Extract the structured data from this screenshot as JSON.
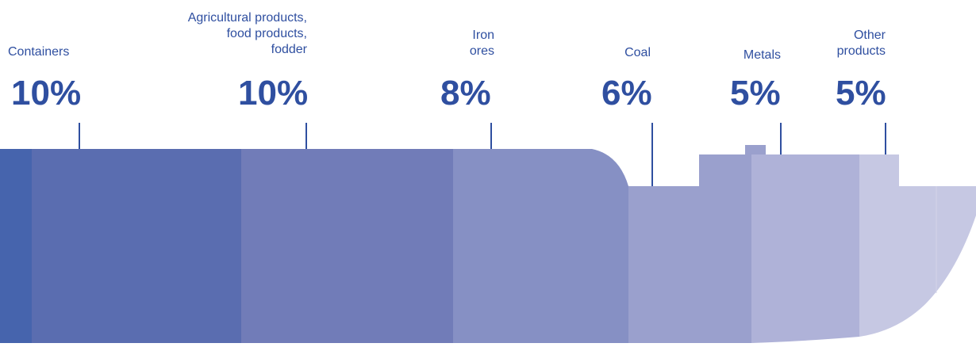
{
  "chart_data": {
    "type": "bar",
    "categories": [
      "Containers",
      "Agricultural products,\nfood products,\nfodder",
      "Iron\nores",
      "Coal",
      "Metals",
      "Other\nproducts"
    ],
    "values": [
      10,
      10,
      8,
      6,
      5,
      5
    ],
    "value_labels": [
      "10%",
      "10%",
      "8%",
      "6%",
      "5%",
      "5%"
    ],
    "unit": "%",
    "colors": [
      "#4664ad",
      "#5a6db0",
      "#717cb8",
      "#8690c4",
      "#9aa0cd",
      "#afb2d8",
      "#c6c8e3"
    ],
    "label_color": "#2f4fa0"
  }
}
